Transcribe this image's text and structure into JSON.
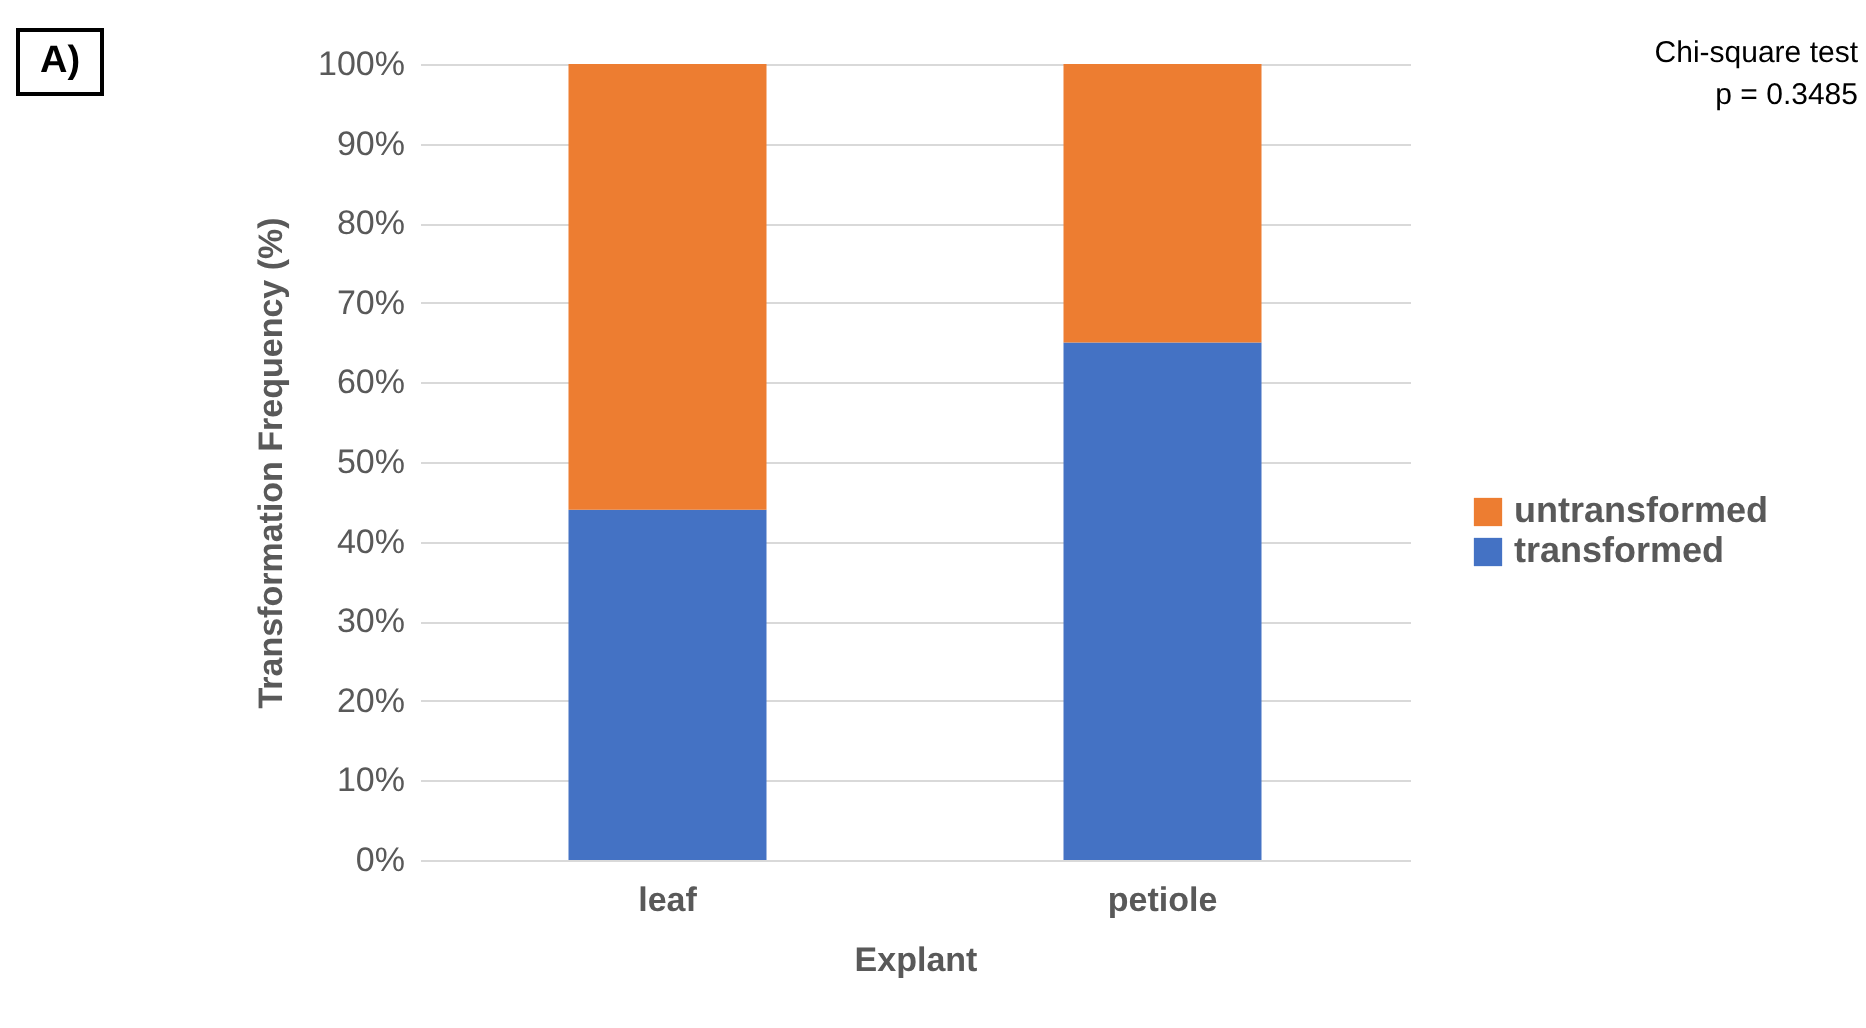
{
  "chart_data": {
    "type": "bar",
    "stacked": true,
    "xlabel": "Explant",
    "ylabel": "Transformation Frequency (%)",
    "categories": [
      "leaf",
      "petiole"
    ],
    "series": [
      {
        "name": "transformed",
        "color": "#4472c4",
        "values": [
          44,
          65
        ]
      },
      {
        "name": "untransformed",
        "color": "#ed7d31",
        "values": [
          56,
          35
        ]
      }
    ],
    "ylim": [
      0,
      100
    ],
    "yticks": [
      {
        "value": 0,
        "label": "0%"
      },
      {
        "value": 10,
        "label": "10%"
      },
      {
        "value": 20,
        "label": "20%"
      },
      {
        "value": 30,
        "label": "30%"
      },
      {
        "value": 40,
        "label": "40%"
      },
      {
        "value": 50,
        "label": "50%"
      },
      {
        "value": 60,
        "label": "60%"
      },
      {
        "value": 70,
        "label": "70%"
      },
      {
        "value": 80,
        "label": "80%"
      },
      {
        "value": 90,
        "label": "90%"
      },
      {
        "value": 100,
        "label": "100%"
      }
    ],
    "grid": "y",
    "legend": "right",
    "annotations": [
      "A)",
      "Chi-square test\np = 0.3485"
    ]
  }
}
